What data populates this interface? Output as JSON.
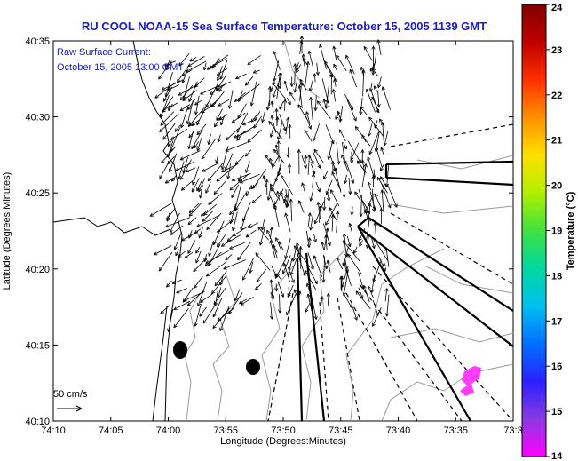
{
  "title": "RU COOL  NOAA-15  Sea Surface Temperature:  October 15, 2005 1139 GMT",
  "annotation": {
    "line1": "Raw Surface Current:",
    "line2": "October 15, 2005 13:00 GMT"
  },
  "scale_label": "50 cm/s",
  "chart_data": {
    "type": "map",
    "xlabel": "Longitude (Degrees:Minutes)",
    "ylabel": "Latitude (Degrees:Minutes)",
    "x_ticks": [
      "74:10",
      "74:05",
      "74:00",
      "73:55",
      "73:50",
      "73:45",
      "73:40",
      "73:35",
      "73:3"
    ],
    "y_ticks": [
      "40:35",
      "40:30",
      "40:25",
      "40:20",
      "40:15",
      "40:10"
    ],
    "colorbar": {
      "label": "Temperature (°C)",
      "min": 14,
      "max": 24,
      "ticks": [
        "24",
        "23",
        "22",
        "21",
        "20",
        "19",
        "18",
        "17",
        "16",
        "15",
        "14"
      ],
      "colors": [
        "#ff00ff",
        "#8a3ae0",
        "#2a20ff",
        "#0070ff",
        "#00c0f0",
        "#00d8a0",
        "#40e040",
        "#b0f000",
        "#ffe000",
        "#ff9000",
        "#ff3000",
        "#c00000",
        "#800000"
      ]
    }
  }
}
